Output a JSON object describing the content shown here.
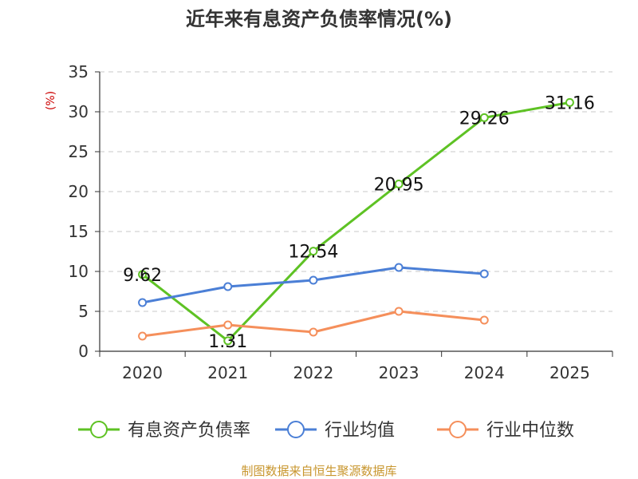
{
  "chart_data": {
    "type": "line",
    "title": "近年来有息资产负债率情况(%)",
    "ylabel": "(%)",
    "ylim": [
      0,
      35
    ],
    "yticks": [
      0,
      5,
      10,
      15,
      20,
      25,
      30,
      35
    ],
    "categories": [
      "2020",
      "2021",
      "2022",
      "2023",
      "2024",
      "2025"
    ],
    "grid": true,
    "legend_position": "bottom",
    "series": [
      {
        "name": "有息资产负债率",
        "color": "#5ec224",
        "values": [
          9.62,
          1.31,
          12.54,
          20.95,
          29.26,
          31.16
        ],
        "labels": [
          "9.62",
          "1.31",
          "12.54",
          "20.95",
          "29.26",
          "31.16"
        ]
      },
      {
        "name": "行业均值",
        "color": "#4b7fd6",
        "values": [
          6.1,
          8.1,
          8.9,
          10.5,
          9.7,
          null
        ]
      },
      {
        "name": "行业中位数",
        "color": "#f58f5b",
        "values": [
          1.9,
          3.3,
          2.4,
          5.0,
          3.9,
          null
        ]
      }
    ]
  },
  "source": "制图数据来自恒生聚源数据库"
}
